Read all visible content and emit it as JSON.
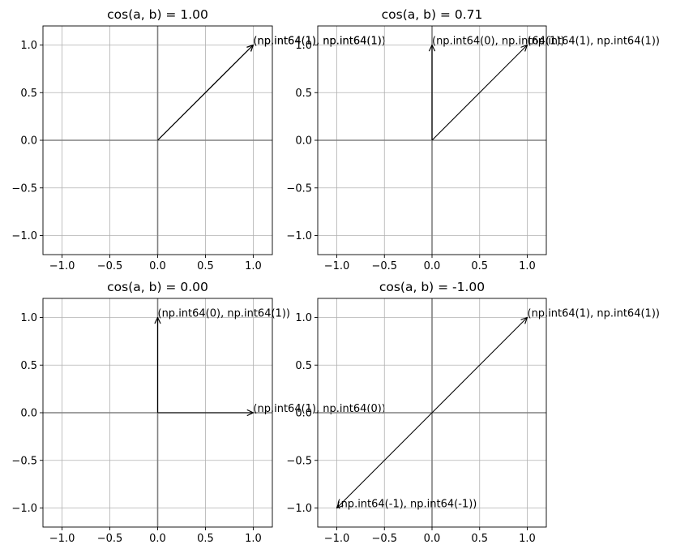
{
  "chart_data": [
    {
      "type": "vector",
      "title": "cos(a, b) = 1.00",
      "xlim": [
        -1.2,
        1.2
      ],
      "ylim": [
        -1.2,
        1.2
      ],
      "xticks": [
        "−1.0",
        "−0.5",
        "0.0",
        "0.5",
        "1.0"
      ],
      "yticks": [
        "−1.0",
        "−0.5",
        "0.0",
        "0.5",
        "1.0"
      ],
      "grid": true,
      "vectors": [
        {
          "x": 1,
          "y": 1,
          "label": "(np.int64(1), np.int64(1))"
        },
        {
          "x": 1,
          "y": 1,
          "label": "(np.int64(1), np.int64(1))"
        }
      ]
    },
    {
      "type": "vector",
      "title": "cos(a, b) = 0.71",
      "xlim": [
        -1.2,
        1.2
      ],
      "ylim": [
        -1.2,
        1.2
      ],
      "xticks": [
        "−1.0",
        "−0.5",
        "0.0",
        "0.5",
        "1.0"
      ],
      "yticks": [
        "−1.0",
        "−0.5",
        "0.0",
        "0.5",
        "1.0"
      ],
      "grid": true,
      "vectors": [
        {
          "x": 1,
          "y": 1,
          "label": "(np.int64(1), np.int64(1))"
        },
        {
          "x": 0,
          "y": 1,
          "label": "(np.int64(0), np.int64(1))"
        }
      ]
    },
    {
      "type": "vector",
      "title": "cos(a, b) = 0.00",
      "xlim": [
        -1.2,
        1.2
      ],
      "ylim": [
        -1.2,
        1.2
      ],
      "xticks": [
        "−1.0",
        "−0.5",
        "0.0",
        "0.5",
        "1.0"
      ],
      "yticks": [
        "−1.0",
        "−0.5",
        "0.0",
        "0.5",
        "1.0"
      ],
      "grid": true,
      "vectors": [
        {
          "x": 1,
          "y": 0,
          "label": "(np.int64(1), np.int64(0))"
        },
        {
          "x": 0,
          "y": 1,
          "label": "(np.int64(0), np.int64(1))"
        }
      ]
    },
    {
      "type": "vector",
      "title": "cos(a, b) = -1.00",
      "xlim": [
        -1.2,
        1.2
      ],
      "ylim": [
        -1.2,
        1.2
      ],
      "xticks": [
        "−1.0",
        "−0.5",
        "0.0",
        "0.5",
        "1.0"
      ],
      "yticks": [
        "−1.0",
        "−0.5",
        "0.0",
        "0.5",
        "1.0"
      ],
      "grid": true,
      "vectors": [
        {
          "x": 1,
          "y": 1,
          "label": "(np.int64(1), np.int64(1))"
        },
        {
          "x": -1,
          "y": -1,
          "label": "(np.int64(-1), np.int64(-1))"
        }
      ]
    }
  ]
}
